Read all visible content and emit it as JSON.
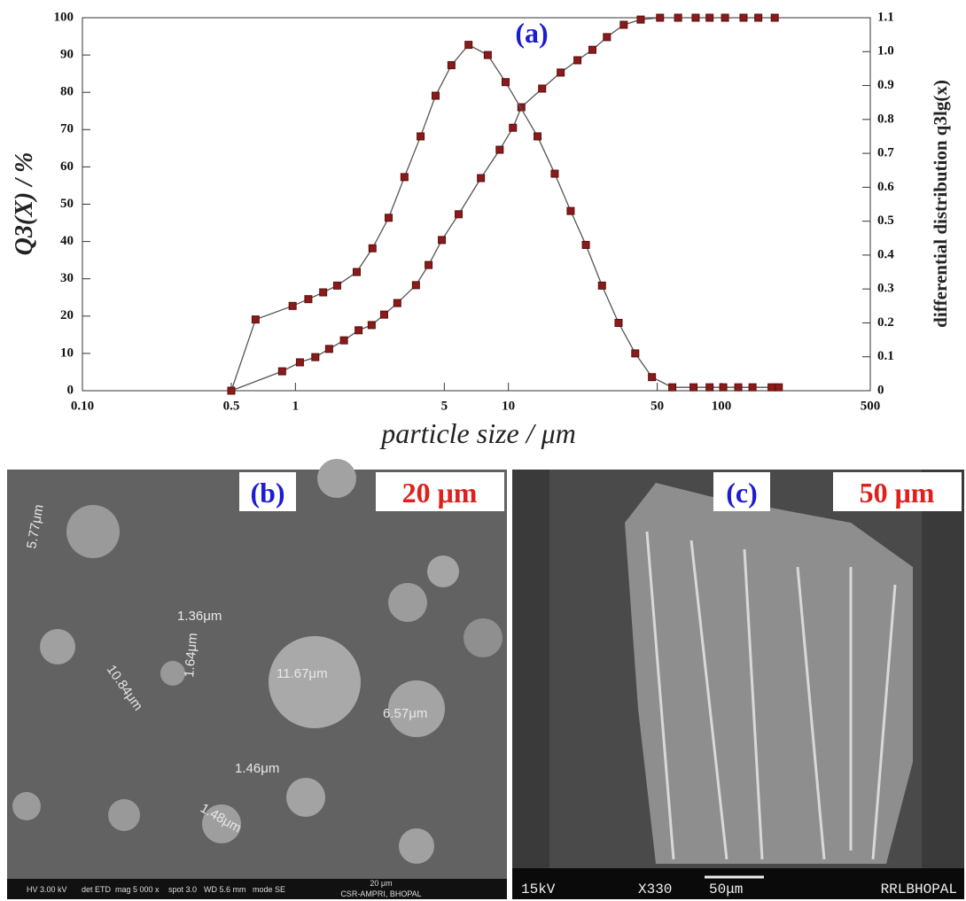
{
  "chart_data": {
    "type": "line",
    "title": "(a)",
    "xlabel": "particle size / μm",
    "ylabel": "Q3(X) / %",
    "y2label": "differential distribution q3lg(x)",
    "xscale": "log",
    "xlim": [
      0.1,
      500
    ],
    "xticks": [
      {
        "value": 0.1,
        "label": "0.10"
      },
      0.5,
      1,
      5,
      10,
      50,
      100,
      500
    ],
    "ylim": [
      0,
      100
    ],
    "yticks": [
      0,
      10,
      20,
      30,
      40,
      50,
      60,
      70,
      80,
      90,
      100
    ],
    "y2lim": [
      0,
      1.1
    ],
    "y2ticks": [
      0,
      0.1,
      0.2,
      0.3,
      0.4,
      0.5,
      0.6,
      0.7,
      0.8,
      0.9,
      {
        "value": 1,
        "label": "1.0"
      },
      1.1
    ],
    "line_color": "#555555",
    "series": [
      {
        "name": "Q3(X)",
        "color": "#8b1a1a",
        "x": [
          0.5,
          0.866,
          1.05,
          1.24,
          1.44,
          1.69,
          1.98,
          2.28,
          2.61,
          3.01,
          3.68,
          4.22,
          4.87,
          5.84,
          7.43,
          9.1,
          10.5,
          11.5,
          14.4,
          17.6,
          21.1,
          24.8,
          29,
          34.8,
          41.8,
          51.5,
          62.6,
          75.7,
          88,
          104,
          127,
          149,
          178
        ],
        "values": [
          0,
          5.2,
          7.6,
          9,
          11.2,
          13.5,
          16.2,
          17.6,
          20.4,
          23.5,
          28.3,
          33.7,
          40.4,
          47.3,
          57,
          64.6,
          70.5,
          76,
          81,
          85.3,
          88.6,
          91.4,
          94.8,
          98.1,
          99.5,
          100,
          100,
          100,
          100,
          100,
          100,
          100,
          100
        ]
      },
      {
        "name": "q3lg(x)",
        "color": "#8b1a1a",
        "axis": "y2",
        "x": [
          0.5,
          0.65,
          0.97,
          1.15,
          1.35,
          1.57,
          1.94,
          2.3,
          2.74,
          3.25,
          3.87,
          4.55,
          5.4,
          6.5,
          8.0,
          9.7,
          13.7,
          16.5,
          19.6,
          23.1,
          27.5,
          32.9,
          39.4,
          47.2,
          58.8,
          74,
          88,
          102,
          120,
          140,
          172,
          186
        ],
        "values": [
          0,
          0.21,
          0.25,
          0.27,
          0.29,
          0.31,
          0.35,
          0.42,
          0.51,
          0.63,
          0.75,
          0.87,
          0.96,
          1.02,
          0.99,
          0.91,
          0.75,
          0.64,
          0.53,
          0.43,
          0.31,
          0.2,
          0.11,
          0.04,
          0.01,
          0.01,
          0.01,
          0.01,
          0.01,
          0.01,
          0.01,
          0.01
        ]
      }
    ]
  },
  "panels": {
    "b": {
      "label": "(b)",
      "scale": "20 μm",
      "measurements": [
        "5.77μm",
        "1.36μm",
        "10.84μm",
        "1.64μm",
        "11.67μm",
        "6.57μm",
        "1.46μm",
        "1.48μm"
      ],
      "footer": [
        "HV 3.00 kV",
        "det ETD",
        "mag 5 000 x",
        "spot 3.0",
        "WD 5.6 mm",
        "mode SE",
        "20 μm",
        "CSR-AMPRI, BHOPAL"
      ]
    },
    "c": {
      "label": "(c)",
      "scale": "50 μm",
      "footer": [
        "15kV",
        "X330",
        "50μm",
        "RRLBHOPAL"
      ]
    }
  }
}
